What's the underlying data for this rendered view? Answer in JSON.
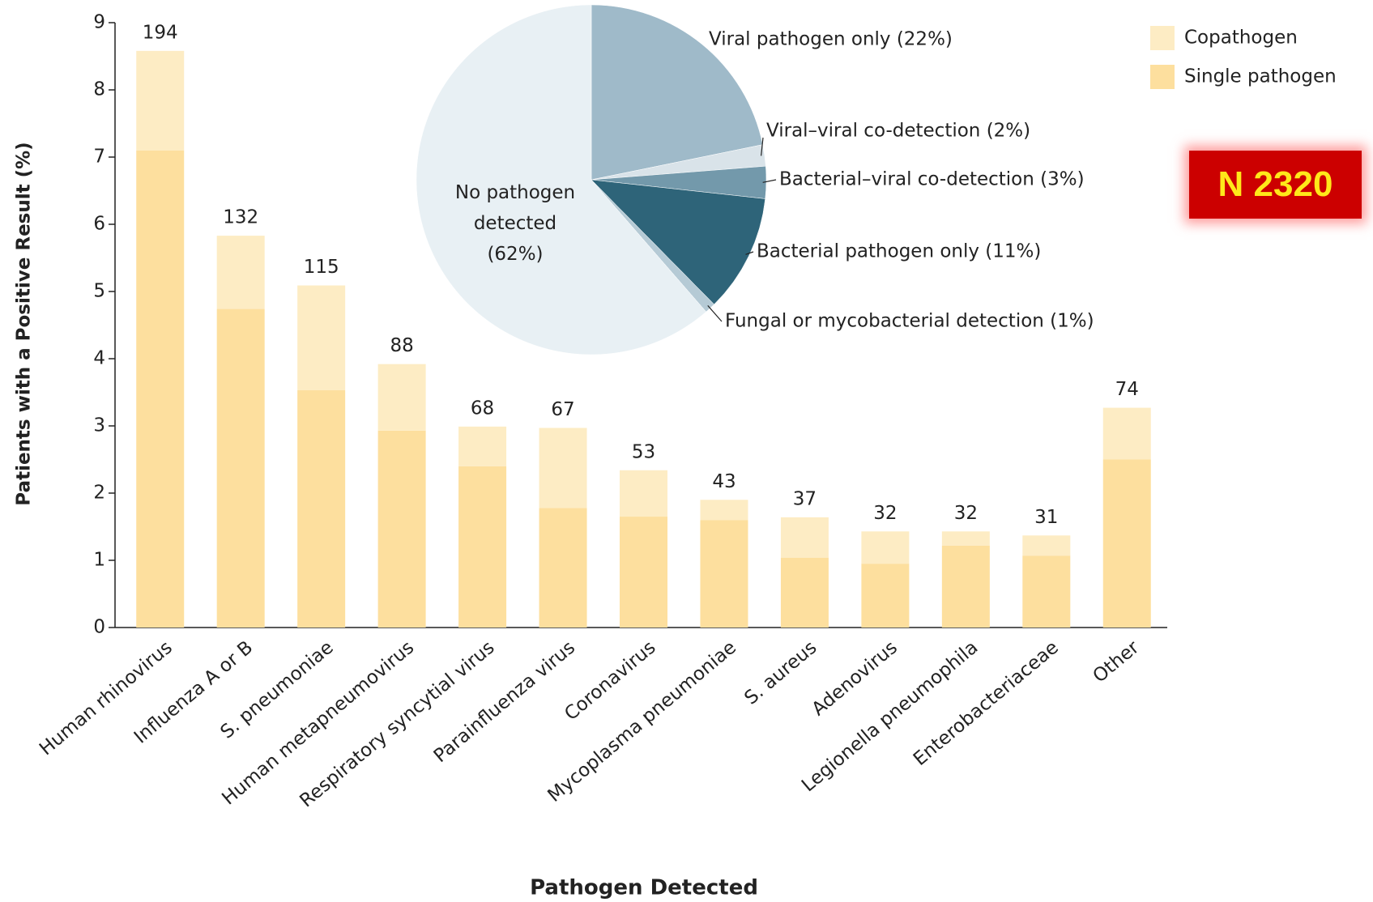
{
  "chart_data": [
    {
      "type": "stacked-bar",
      "x_label": "Pathogen Detected",
      "y_label": "Patients with a Positive Result (%)",
      "categories": [
        "Human rhinovirus",
        "Influenza A or B",
        "S. pneumoniae",
        "Human metapneumovirus",
        "Respiratory syncytial virus",
        "Parainfluenza virus",
        "Coronavirus",
        "Mycoplasma pneumoniae",
        "S. aureus",
        "Adenovirus",
        "Legionella pneumophila",
        "Enterobacteriaceae",
        "Other"
      ],
      "series": [
        {
          "name": "Single pathogen",
          "color": "#fddf9e",
          "values": [
            7.1,
            4.74,
            3.53,
            2.93,
            2.4,
            1.78,
            1.65,
            1.6,
            1.04,
            0.95,
            1.22,
            1.07,
            2.5
          ]
        },
        {
          "name": "Copathogen",
          "color": "#fdecc4",
          "values": [
            1.48,
            1.09,
            1.56,
            0.99,
            0.59,
            1.19,
            0.69,
            0.3,
            0.6,
            0.48,
            0.21,
            0.3,
            0.77
          ]
        }
      ],
      "counts": [
        194,
        132,
        115,
        88,
        68,
        67,
        53,
        43,
        37,
        32,
        32,
        31,
        74
      ],
      "ylim": [
        0,
        9
      ],
      "yticks": [
        0,
        1,
        2,
        3,
        4,
        5,
        6,
        7,
        8,
        9
      ],
      "legend": "top-right"
    },
    {
      "type": "pie",
      "labels": [
        "Viral pathogen only (22%)",
        "Viral–viral co-detection (2%)",
        "Bacterial–viral co-detection (3%)",
        "Bacterial pathogen only (11%)",
        "Fungal or mycobacterial detection (1%)",
        "No pathogen detected (62%)"
      ],
      "values": [
        22,
        2,
        3,
        11,
        1,
        62
      ],
      "colors": [
        "#9fbac9",
        "#d9e3e9",
        "#7399ab",
        "#2e6479",
        "#b5cad5",
        "#e8f0f4"
      ]
    }
  ],
  "badge": "N 2320"
}
